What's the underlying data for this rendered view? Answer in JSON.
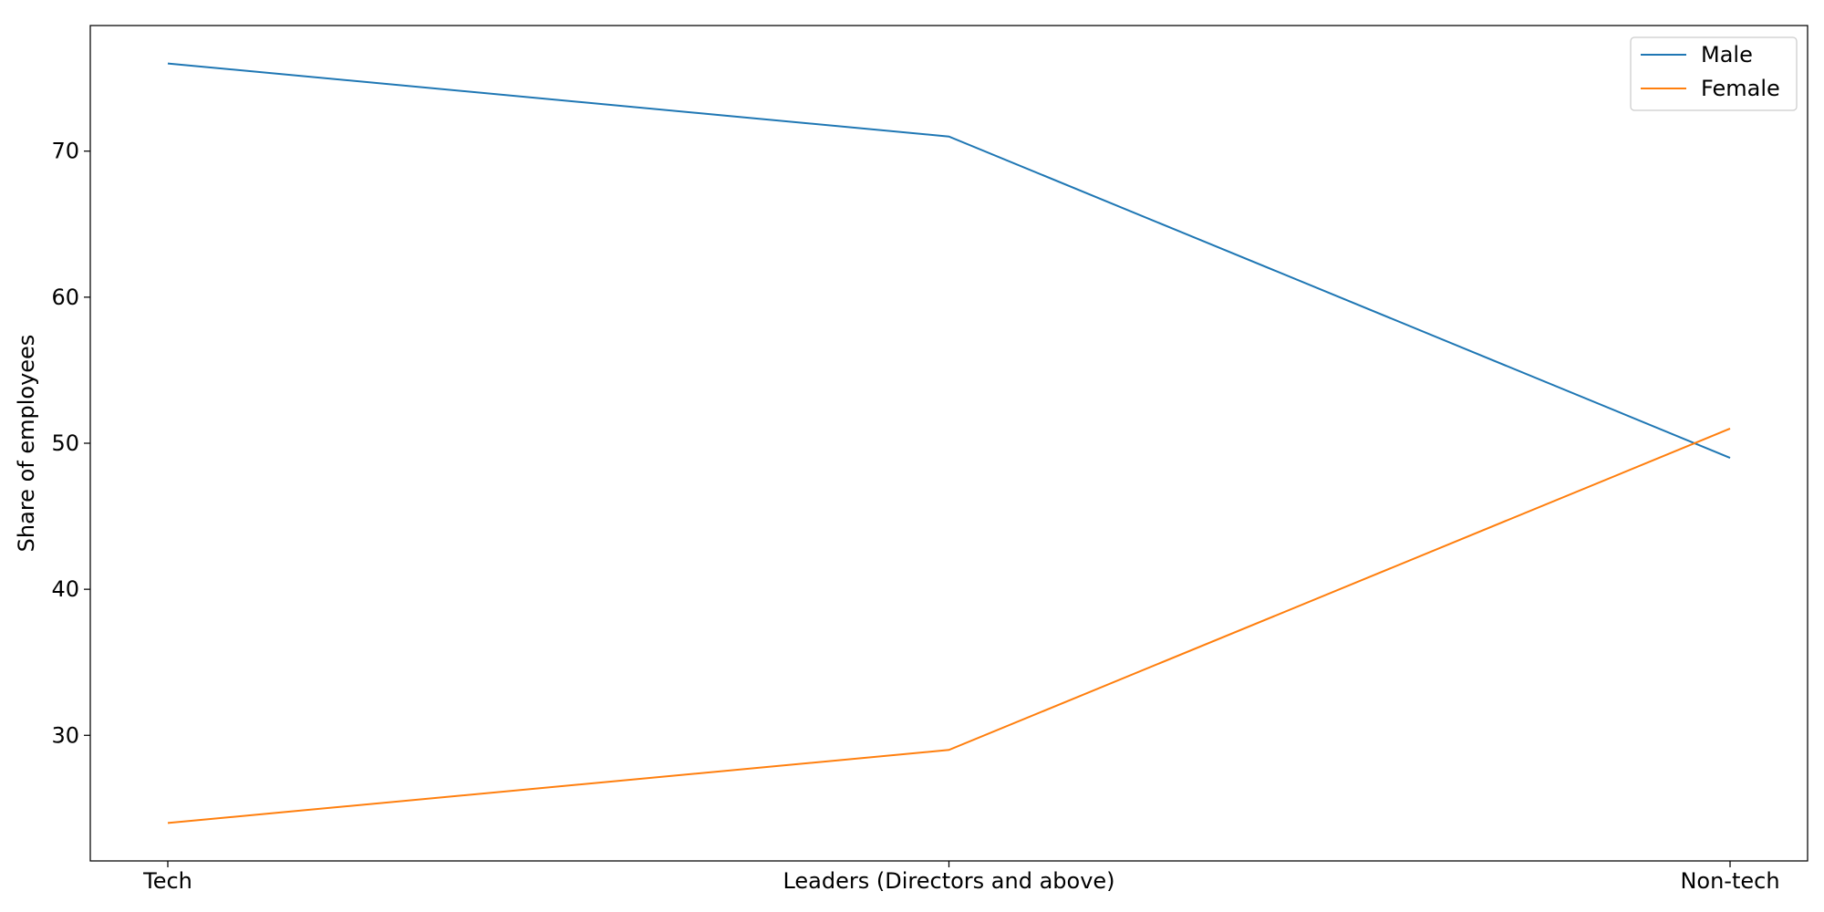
{
  "chart_data": {
    "type": "line",
    "title": "",
    "xlabel": "",
    "ylabel": "Share of employees",
    "categories": [
      "Tech",
      "Leaders (Directors and above)",
      "Non-tech"
    ],
    "series": [
      {
        "name": "Male",
        "color": "#1f77b4",
        "values": [
          76,
          71,
          49
        ]
      },
      {
        "name": "Female",
        "color": "#ff7f0e",
        "values": [
          24,
          29,
          51
        ]
      }
    ],
    "ylim": [
      21.4,
      78.6
    ],
    "yticks": [
      30,
      40,
      50,
      60,
      70
    ],
    "grid": false,
    "legend": "top-right"
  }
}
